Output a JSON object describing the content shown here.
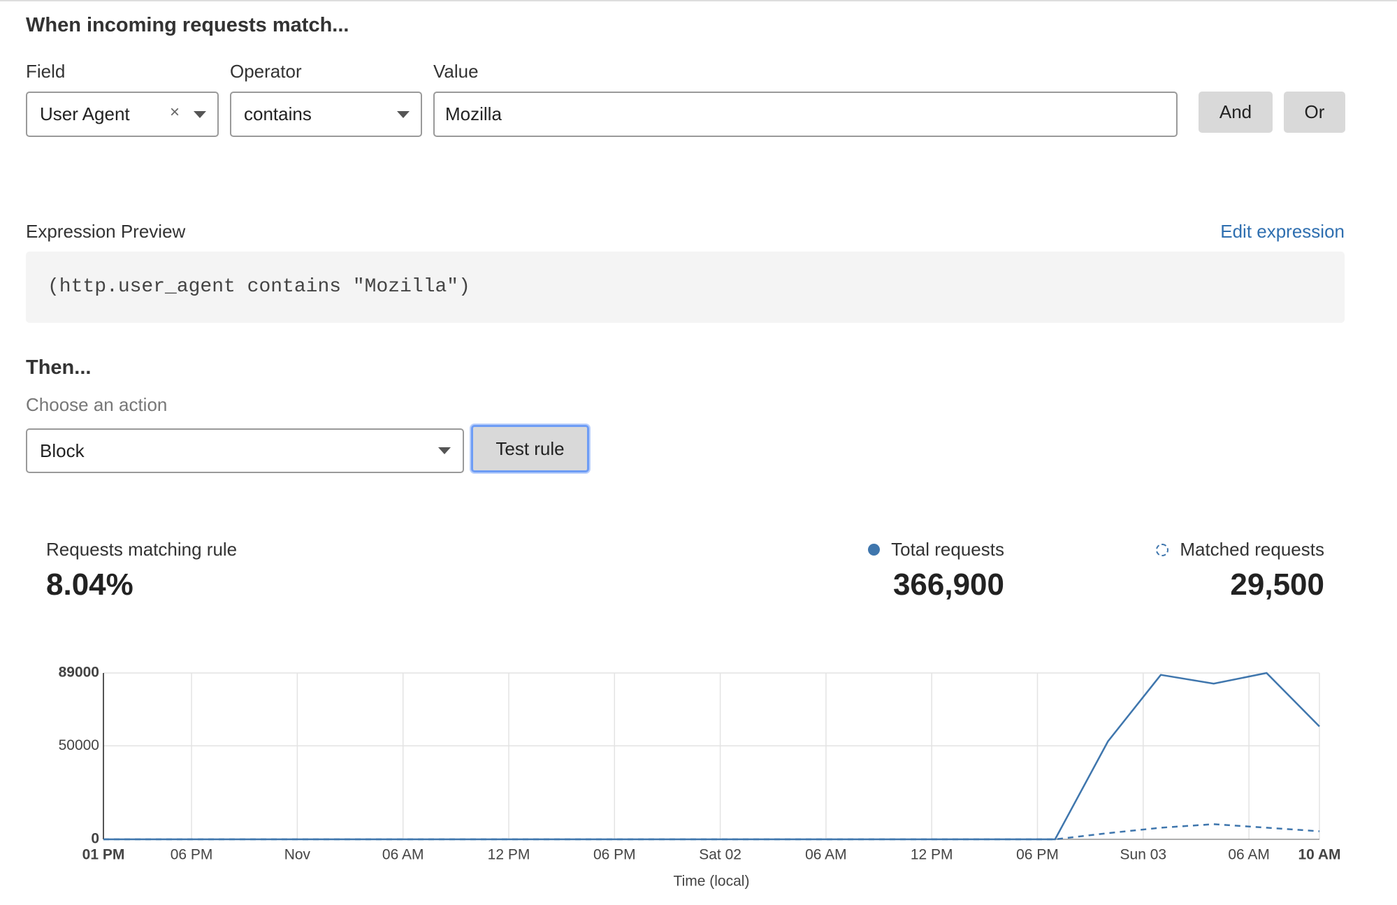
{
  "form": {
    "heading": "When incoming requests match...",
    "fields": [
      {
        "label": "Field",
        "value": "User Agent"
      },
      {
        "label": "Operator",
        "value": "contains"
      },
      {
        "label": "Value",
        "value": "Mozilla"
      }
    ],
    "buttons": [
      "And",
      "Or"
    ],
    "preview_label": "Expression Preview",
    "edit_link": "Edit expression",
    "expression": "(http.user_agent contains \"Mozilla\")",
    "then_heading": "Then...",
    "action_label": "Choose an action",
    "action": "Block",
    "test_button": "Test rule"
  },
  "stats": {
    "label": "Requests matching rule",
    "value": "8.04%",
    "total": "366,900",
    "matched": "29,500"
  },
  "chart_data": {
    "type": "line",
    "x_label": "Time (local)",
    "x": [
      0,
      3,
      6,
      9,
      12,
      15,
      18,
      21,
      24,
      27,
      30,
      33,
      36,
      39,
      42,
      45,
      48,
      51,
      54,
      57,
      60,
      63,
      66,
      69
    ],
    "series": [
      {
        "name": "Total requests",
        "color": "#3f76ad",
        "dashed": false,
        "values": [
          0,
          0,
          0,
          0,
          0,
          0,
          0,
          0,
          0,
          0,
          0,
          0,
          0,
          0,
          0,
          0,
          0,
          0,
          0,
          52400,
          88000,
          83300,
          89000,
          60400
        ]
      },
      {
        "name": "Matched requests",
        "color": "#3f76ad",
        "dashed": true,
        "values": [
          0,
          0,
          0,
          0,
          0,
          0,
          0,
          0,
          0,
          0,
          0,
          0,
          0,
          0,
          0,
          0,
          0,
          0,
          0,
          3300,
          6200,
          8100,
          6200,
          4300
        ]
      }
    ],
    "xlim": [
      0,
      69
    ],
    "xticks": [
      {
        "value": 0,
        "label": "01 PM"
      },
      {
        "value": 5,
        "label": "06 PM"
      },
      {
        "value": 11,
        "label": "Nov"
      },
      {
        "value": 17,
        "label": "06 AM"
      },
      {
        "value": 23,
        "label": "12 PM"
      },
      {
        "value": 29,
        "label": "06 PM"
      },
      {
        "value": 35,
        "label": "Sat 02"
      },
      {
        "value": 41,
        "label": "06 AM"
      },
      {
        "value": 47,
        "label": "12 PM"
      },
      {
        "value": 53,
        "label": "06 PM"
      },
      {
        "value": 59,
        "label": "Sun 03"
      },
      {
        "value": 65,
        "label": "06 AM"
      },
      {
        "value": 69,
        "label": "10 AM"
      }
    ],
    "ylim": [
      0,
      89000
    ],
    "yticks": [
      0,
      50000,
      89000
    ],
    "grid": true
  }
}
